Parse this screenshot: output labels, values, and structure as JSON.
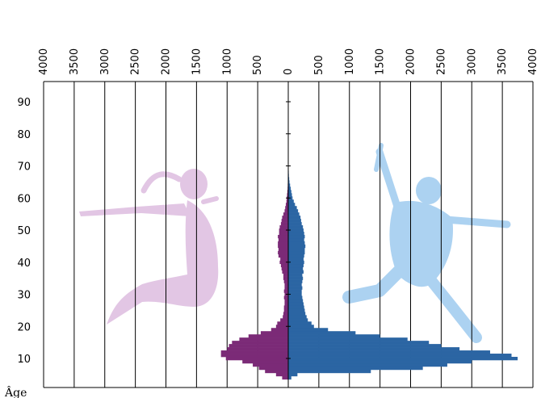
{
  "chart_data": {
    "type": "bar",
    "orientation": "horizontal",
    "layout": "population-pyramid",
    "xlim": [
      -4000,
      4000
    ],
    "ylim": [
      2,
      93
    ],
    "x_ticks": [
      -4000,
      -3500,
      -3000,
      -2500,
      -2000,
      -1500,
      -1000,
      -500,
      0,
      500,
      1000,
      1500,
      2000,
      2500,
      3000,
      3500,
      4000
    ],
    "x_tick_labels": [
      "4000",
      "3500",
      "3000",
      "2500",
      "2000",
      "1500",
      "1000",
      "500",
      "0",
      "500",
      "1000",
      "1500",
      "2000",
      "2500",
      "3000",
      "3500",
      "4000"
    ],
    "y_ticks": [
      10,
      20,
      30,
      40,
      50,
      60,
      70,
      80,
      90
    ],
    "y_tick_labels": [
      "10",
      "20",
      "30",
      "40",
      "50",
      "60",
      "70",
      "80",
      "90"
    ],
    "ylabel": "Âge",
    "grid": "vertical",
    "ages": [
      4,
      5,
      6,
      7,
      8,
      9,
      10,
      11,
      12,
      13,
      14,
      15,
      16,
      17,
      18,
      19,
      20,
      21,
      22,
      23,
      24,
      25,
      26,
      27,
      28,
      29,
      30,
      31,
      32,
      33,
      34,
      35,
      36,
      37,
      38,
      39,
      40,
      41,
      42,
      43,
      44,
      45,
      46,
      47,
      48,
      49,
      50,
      51,
      52,
      53,
      54,
      55,
      56,
      57,
      58,
      59,
      60,
      61,
      62,
      63,
      64,
      65,
      66,
      67,
      68,
      69,
      70,
      71,
      72,
      73,
      74,
      75,
      76,
      77,
      78,
      79,
      80
    ],
    "series": [
      {
        "side": "left",
        "color": "#7b2a77",
        "values": [
          100,
          200,
          380,
          480,
          580,
          750,
          1020,
          1100,
          1100,
          1000,
          970,
          920,
          800,
          650,
          450,
          280,
          200,
          180,
          130,
          90,
          80,
          70,
          70,
          60,
          60,
          70,
          60,
          70,
          60,
          60,
          70,
          80,
          80,
          100,
          110,
          120,
          140,
          130,
          160,
          170,
          160,
          170,
          170,
          160,
          170,
          150,
          150,
          140,
          120,
          110,
          100,
          80,
          60,
          50,
          40,
          30,
          25,
          20,
          15,
          10,
          8,
          5,
          4,
          3,
          3,
          2,
          2,
          2,
          2,
          2,
          1,
          1,
          1,
          1,
          1,
          1,
          1
        ]
      },
      {
        "side": "right",
        "color": "#2b65a3",
        "values": [
          50,
          150,
          1350,
          2200,
          2600,
          3000,
          3750,
          3650,
          3300,
          2800,
          2500,
          2300,
          1950,
          1500,
          1100,
          650,
          420,
          380,
          320,
          300,
          280,
          270,
          260,
          250,
          240,
          230,
          220,
          220,
          230,
          220,
          230,
          240,
          230,
          250,
          240,
          250,
          260,
          250,
          260,
          270,
          270,
          280,
          270,
          260,
          270,
          260,
          250,
          240,
          220,
          210,
          200,
          180,
          160,
          140,
          110,
          90,
          70,
          60,
          50,
          40,
          30,
          20,
          15,
          10,
          8,
          6,
          5,
          4,
          3,
          3,
          2,
          2,
          2,
          1,
          1,
          1,
          1
        ]
      }
    ],
    "decorations": [
      {
        "name": "female-silhouette",
        "color": "#e2c6e4"
      },
      {
        "name": "male-silhouette",
        "color": "#acd2f1"
      }
    ]
  }
}
